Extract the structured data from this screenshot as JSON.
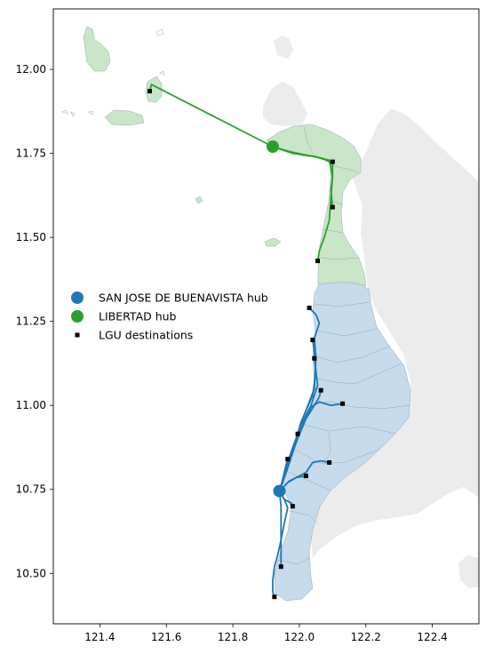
{
  "chart_data": {
    "type": "map",
    "xlim": [
      121.26,
      122.54
    ],
    "ylim": [
      10.35,
      12.18
    ],
    "x_ticks": [
      "121.4",
      "121.6",
      "121.8",
      "122.0",
      "122.2",
      "122.4"
    ],
    "y_ticks": [
      "10.50",
      "10.75",
      "11.00",
      "11.25",
      "11.50",
      "11.75",
      "12.00"
    ],
    "legend": {
      "placement": "center-left",
      "entries": [
        {
          "label": "SAN JOSE DE BUENAVISTA hub",
          "marker": "circle",
          "color": "#1f77b4"
        },
        {
          "label": "LIBERTAD hub",
          "marker": "circle",
          "color": "#2ca02c"
        },
        {
          "label": "LGU destinations",
          "marker": "square",
          "color": "#000000"
        }
      ]
    },
    "colors": {
      "land_background": "#ececec",
      "south_region_fill": "#c6dbec",
      "north_region_fill": "#c9e6c9",
      "south_route": "#1f77b4",
      "north_route": "#2ca02c"
    },
    "hubs": [
      {
        "name": "SAN JOSE DE BUENAVISTA",
        "lon": 121.94,
        "lat": 10.745,
        "color": "#1f77b4"
      },
      {
        "name": "LIBERTAD",
        "lon": 121.92,
        "lat": 11.77,
        "color": "#2ca02c"
      }
    ],
    "south_destinations": [
      [
        121.925,
        10.43
      ],
      [
        121.945,
        10.52
      ],
      [
        121.98,
        10.7
      ],
      [
        122.02,
        10.79
      ],
      [
        122.09,
        10.83
      ],
      [
        121.965,
        10.84
      ],
      [
        121.995,
        10.915
      ],
      [
        122.13,
        11.005
      ],
      [
        122.065,
        11.045
      ],
      [
        122.045,
        11.14
      ],
      [
        122.04,
        11.195
      ],
      [
        122.03,
        11.29
      ]
    ],
    "north_destinations": [
      [
        121.55,
        11.935
      ],
      [
        122.1,
        11.725
      ],
      [
        122.1,
        11.59
      ],
      [
        122.055,
        11.43
      ]
    ],
    "south_routes": [
      [
        [
          121.94,
          10.745
        ],
        [
          121.955,
          10.72
        ],
        [
          121.965,
          10.695
        ],
        [
          121.955,
          10.65
        ],
        [
          121.945,
          10.6
        ],
        [
          121.935,
          10.555
        ],
        [
          121.925,
          10.52
        ],
        [
          121.92,
          10.48
        ],
        [
          121.92,
          10.445
        ],
        [
          121.925,
          10.43
        ]
      ],
      [
        [
          121.94,
          10.745
        ],
        [
          121.945,
          10.7
        ],
        [
          121.945,
          10.64
        ],
        [
          121.945,
          10.58
        ],
        [
          121.945,
          10.52
        ]
      ],
      [
        [
          121.94,
          10.745
        ],
        [
          121.955,
          10.72
        ],
        [
          121.975,
          10.71
        ],
        [
          121.98,
          10.7
        ]
      ],
      [
        [
          121.94,
          10.745
        ],
        [
          121.965,
          10.77
        ],
        [
          121.99,
          10.785
        ],
        [
          122.02,
          10.79
        ]
      ],
      [
        [
          121.94,
          10.745
        ],
        [
          121.97,
          10.775
        ],
        [
          122.0,
          10.79
        ],
        [
          122.02,
          10.8
        ],
        [
          122.04,
          10.83
        ],
        [
          122.065,
          10.835
        ],
        [
          122.09,
          10.83
        ]
      ],
      [
        [
          121.94,
          10.745
        ],
        [
          121.95,
          10.78
        ],
        [
          121.958,
          10.815
        ],
        [
          121.965,
          10.84
        ]
      ],
      [
        [
          121.94,
          10.745
        ],
        [
          121.955,
          10.79
        ],
        [
          121.968,
          10.84
        ],
        [
          121.982,
          10.88
        ],
        [
          121.995,
          10.915
        ]
      ],
      [
        [
          121.94,
          10.745
        ],
        [
          121.96,
          10.8
        ],
        [
          121.985,
          10.875
        ],
        [
          122.01,
          10.94
        ],
        [
          122.035,
          10.995
        ],
        [
          122.06,
          11.01
        ],
        [
          122.095,
          11.0
        ],
        [
          122.13,
          11.005
        ]
      ],
      [
        [
          121.94,
          10.745
        ],
        [
          121.96,
          10.8
        ],
        [
          121.99,
          10.89
        ],
        [
          122.02,
          10.96
        ],
        [
          122.045,
          11.0
        ],
        [
          122.06,
          11.025
        ],
        [
          122.065,
          11.045
        ]
      ],
      [
        [
          121.94,
          10.745
        ],
        [
          121.965,
          10.82
        ],
        [
          122.0,
          10.93
        ],
        [
          122.035,
          11.0
        ],
        [
          122.055,
          11.06
        ],
        [
          122.05,
          11.1
        ],
        [
          122.045,
          11.14
        ]
      ],
      [
        [
          121.94,
          10.745
        ],
        [
          121.97,
          10.83
        ],
        [
          122.005,
          10.95
        ],
        [
          122.04,
          11.03
        ],
        [
          122.05,
          11.1
        ],
        [
          122.045,
          11.16
        ],
        [
          122.04,
          11.195
        ]
      ],
      [
        [
          121.94,
          10.745
        ],
        [
          121.97,
          10.83
        ],
        [
          122.01,
          10.96
        ],
        [
          122.045,
          11.05
        ],
        [
          122.05,
          11.14
        ],
        [
          122.045,
          11.2
        ],
        [
          122.06,
          11.245
        ],
        [
          122.05,
          11.27
        ],
        [
          122.03,
          11.29
        ]
      ]
    ],
    "north_routes": [
      [
        [
          121.92,
          11.77
        ],
        [
          121.555,
          11.955
        ],
        [
          121.55,
          11.935
        ]
      ],
      [
        [
          121.92,
          11.77
        ],
        [
          121.97,
          11.755
        ],
        [
          122.01,
          11.745
        ],
        [
          122.05,
          11.74
        ],
        [
          122.08,
          11.73
        ],
        [
          122.1,
          11.725
        ]
      ],
      [
        [
          121.92,
          11.77
        ],
        [
          121.97,
          11.755
        ],
        [
          122.02,
          11.745
        ],
        [
          122.07,
          11.735
        ],
        [
          122.1,
          11.72
        ],
        [
          122.1,
          11.68
        ],
        [
          122.095,
          11.64
        ],
        [
          122.1,
          11.59
        ]
      ],
      [
        [
          121.92,
          11.77
        ],
        [
          121.98,
          11.75
        ],
        [
          122.04,
          11.742
        ],
        [
          122.09,
          11.73
        ],
        [
          122.1,
          11.68
        ],
        [
          122.095,
          11.62
        ],
        [
          122.09,
          11.55
        ],
        [
          122.075,
          11.5
        ],
        [
          122.06,
          11.46
        ],
        [
          122.055,
          11.43
        ]
      ]
    ]
  }
}
